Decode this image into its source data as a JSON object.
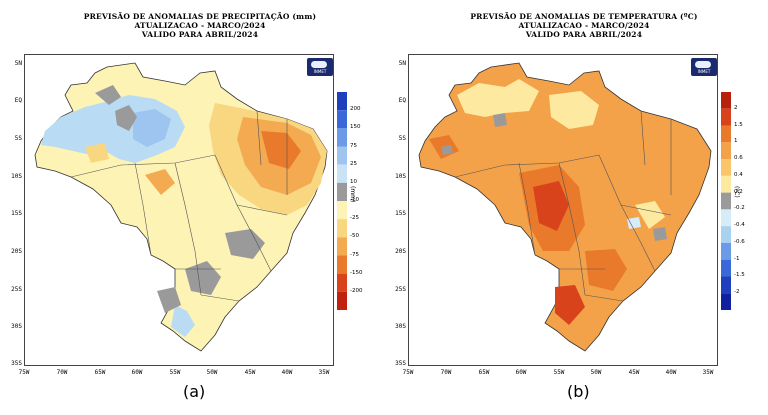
{
  "panels": [
    {
      "titles": [
        "PREVISÃO DE ANOMALIAS DE PRECIPITAÇÃO (mm)",
        "ATUALIZACAO - MARCO/2024",
        "VALIDO PARA ABRIL/2024"
      ],
      "caption": "(a)",
      "logo_text": "INMET",
      "unit": "(mm)",
      "colorbar": {
        "labels": [
          "200",
          "150",
          "75",
          "25",
          "10",
          "-10",
          "-25",
          "-50",
          "-75",
          "-150",
          "-200"
        ],
        "colors": [
          "#1f3fbf",
          "#3a68d8",
          "#6b9ae6",
          "#9ec4f0",
          "#c8e3f6",
          "#9a9a9a",
          "#fdf3b5",
          "#f9d680",
          "#f3aa50",
          "#ea7a2b",
          "#d9431b",
          "#c0220f"
        ]
      },
      "map_colors": {
        "base": "#fdf3b5",
        "wet": "#b9dcf4",
        "dry": "#f3aa50",
        "grey": "#9a9a9a",
        "deep": "#e8862f"
      }
    },
    {
      "titles": [
        "PREVISÃO DE ANOMALIAS DE TEMPERATURA (ºC)",
        "ATUALIZACAO - MARCO/2024",
        "VALIDO PARA ABRIL/2024"
      ],
      "caption": "(b)",
      "logo_text": "INMET",
      "unit": "(ºC)",
      "colorbar": {
        "labels": [
          "2",
          "1.5",
          "1",
          "0.6",
          "0.4",
          "0.2",
          "-0.2",
          "-0.4",
          "-0.6",
          "-1",
          "-1.5",
          "-2"
        ],
        "colors": [
          "#b8200e",
          "#d9431b",
          "#ea7a2b",
          "#f3a24a",
          "#f9c46a",
          "#fdeaa0",
          "#9a9a9a",
          "#d6ecf8",
          "#a9d2f0",
          "#6b9ae6",
          "#3a68d8",
          "#1f3fbf",
          "#1020a0"
        ]
      },
      "map_colors": {
        "base": "#f3a24a",
        "hot": "#ea7a2b",
        "hotter": "#d9431b",
        "mild": "#fdeaa0",
        "grey": "#9a9a9a"
      }
    }
  ],
  "axes": {
    "lat_labels": [
      "5N",
      "EQ",
      "5S",
      "10S",
      "15S",
      "20S",
      "25S",
      "30S",
      "35S"
    ],
    "lon_labels": [
      "75W",
      "70W",
      "65W",
      "60W",
      "55W",
      "50W",
      "45W",
      "40W",
      "35W"
    ]
  }
}
